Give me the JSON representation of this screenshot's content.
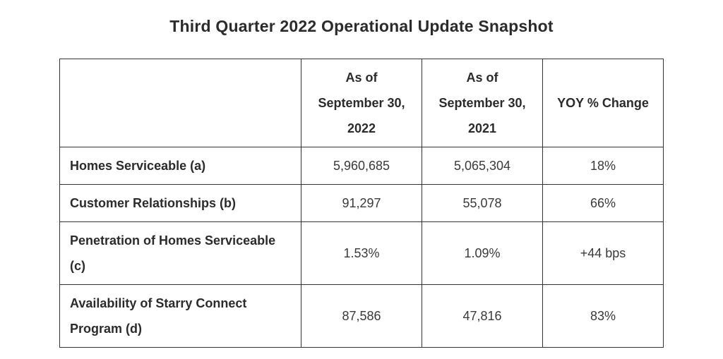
{
  "title": "Third Quarter 2022 Operational Update Snapshot",
  "table": {
    "type": "table",
    "background_color": "#ffffff",
    "border_color": "#333333",
    "text_color": "#2b2b2b",
    "header_fontsize_pt": 14,
    "body_fontsize_pt": 14,
    "title_fontsize_pt": 17,
    "title_fontweight": 700,
    "font_family": "Helvetica",
    "column_widths_pct": [
      40,
      20,
      20,
      20
    ],
    "columns": [
      {
        "key": "label",
        "header": "",
        "align": "left",
        "header_align": "center",
        "fontweight": 700
      },
      {
        "key": "v2022",
        "header": "As of September 30, 2022",
        "align": "center",
        "header_align": "center",
        "fontweight": 400
      },
      {
        "key": "v2021",
        "header": "As of September 30, 2021",
        "align": "center",
        "header_align": "center",
        "fontweight": 400
      },
      {
        "key": "change",
        "header": "YOY % Change",
        "align": "center",
        "header_align": "center",
        "fontweight": 400
      }
    ],
    "rows": [
      {
        "label": "Homes Serviceable (a)",
        "v2022": "5,960,685",
        "v2021": "5,065,304",
        "change": "18%"
      },
      {
        "label": "Customer Relationships (b)",
        "v2022": "91,297",
        "v2021": "55,078",
        "change": "66%"
      },
      {
        "label": "Penetration of Homes Serviceable (c)",
        "v2022": "1.53%",
        "v2021": "1.09%",
        "change": "+44 bps"
      },
      {
        "label": "Availability of Starry Connect Program (d)",
        "v2022": "87,586",
        "v2021": "47,816",
        "change": "83%"
      }
    ]
  }
}
